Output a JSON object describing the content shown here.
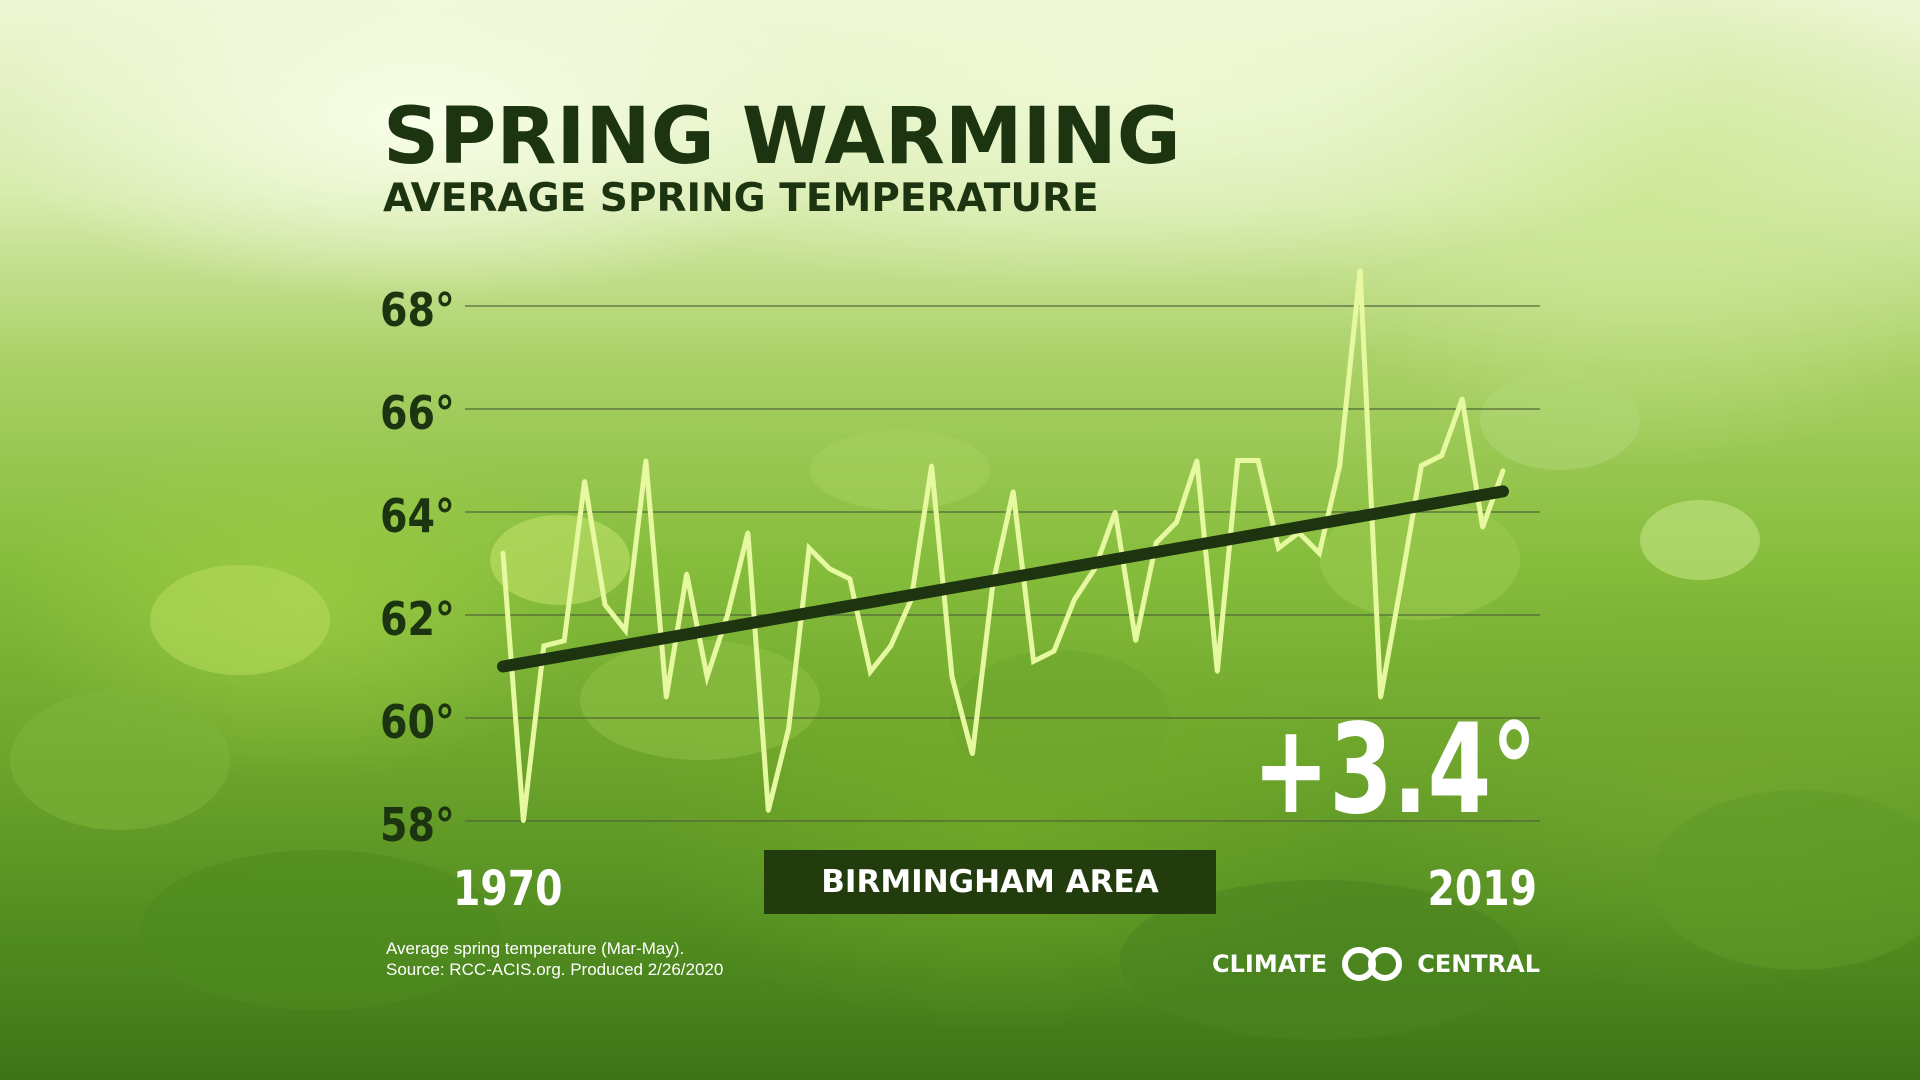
{
  "title": "SPRING WARMING",
  "subtitle": "AVERAGE SPRING TEMPERATURE",
  "area_label": "BIRMINGHAM AREA",
  "change_label": "+3.4°",
  "footnote": {
    "line1": "Average spring temperature (Mar-May).",
    "line2": "Source: RCC-ACIS.org. Produced 2/26/2020"
  },
  "logo": {
    "left": "CLIMATE",
    "right": "CENTRAL"
  },
  "colors": {
    "series_line": "#e6f8a0",
    "trend_line": "#1e3410",
    "title_text": "#1c3410",
    "axis_text": "#1c3410",
    "year_text": "#ffffff",
    "gridline": "#506438",
    "label_box": "#233c0e"
  },
  "chart_data": {
    "type": "line",
    "title": "SPRING WARMING",
    "subtitle": "AVERAGE SPRING TEMPERATURE",
    "x_tick_labels": [
      "1970",
      "2019"
    ],
    "y_ticks": [
      58,
      60,
      62,
      64,
      66,
      68
    ],
    "y_tick_labels": [
      "58°",
      "60°",
      "62°",
      "64°",
      "66°",
      "68°"
    ],
    "ylim": [
      58,
      68
    ],
    "xlim": [
      1970,
      2019
    ],
    "grid": true,
    "x": [
      1970,
      1971,
      1972,
      1973,
      1974,
      1975,
      1976,
      1977,
      1978,
      1979,
      1980,
      1981,
      1982,
      1983,
      1984,
      1985,
      1986,
      1987,
      1988,
      1989,
      1990,
      1991,
      1992,
      1993,
      1994,
      1995,
      1996,
      1997,
      1998,
      1999,
      2000,
      2001,
      2002,
      2003,
      2004,
      2005,
      2006,
      2007,
      2008,
      2009,
      2010,
      2011,
      2012,
      2013,
      2014,
      2015,
      2016,
      2017,
      2018,
      2019
    ],
    "series": [
      {
        "values": [
          63.2,
          58.0,
          61.4,
          61.5,
          64.6,
          62.2,
          61.7,
          65.0,
          60.4,
          62.8,
          60.8,
          62.0,
          63.6,
          58.2,
          59.8,
          63.3,
          62.9,
          62.7,
          60.9,
          61.4,
          62.3,
          64.9,
          60.8,
          59.3,
          62.6,
          64.4,
          61.1,
          61.3,
          62.3,
          62.9,
          64.0,
          61.5,
          63.4,
          63.8,
          65.0,
          60.9,
          65.0,
          65.0,
          63.3,
          63.6,
          63.2,
          64.9,
          68.7,
          60.4,
          62.6,
          64.9,
          65.1,
          66.2,
          63.7,
          64.8
        ]
      }
    ],
    "trend": {
      "start": {
        "x": 1970,
        "y": 61.0
      },
      "end": {
        "x": 2019,
        "y": 64.4
      },
      "change": 3.4
    }
  }
}
